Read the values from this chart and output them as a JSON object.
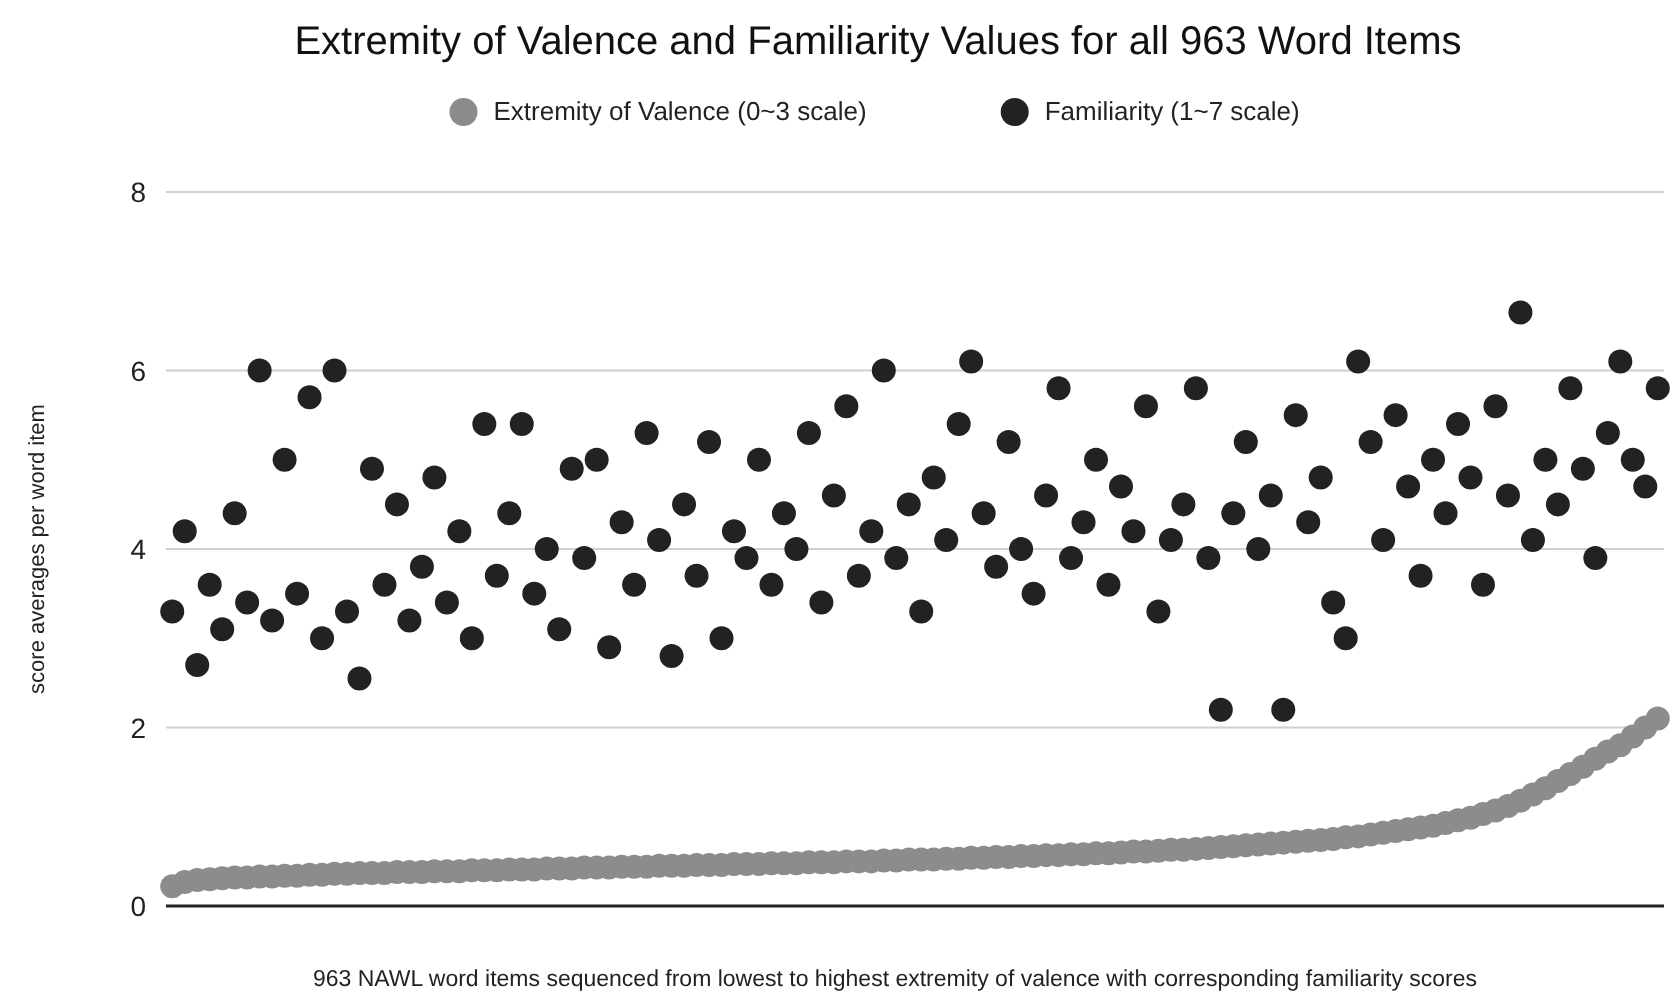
{
  "chart_data": {
    "type": "scatter",
    "title": "Extremity of Valence and Familiarity Values for all 963 Word Items",
    "xlabel": "963 NAWL word items sequenced from lowest to highest extremity of valence with corresponding familiarity scores",
    "ylabel": "score averages per word item",
    "categories": [
      null,
      null,
      null,
      null,
      null,
      null,
      null,
      null,
      null,
      null,
      null,
      null,
      null,
      null,
      null,
      null,
      null,
      null,
      null,
      null,
      null,
      null,
      null,
      null,
      null,
      null,
      null,
      null,
      null,
      null,
      null,
      null,
      null,
      null,
      null,
      null,
      null,
      null,
      null,
      null,
      null,
      null,
      null,
      null,
      null,
      null,
      null,
      null,
      null,
      null,
      null,
      null,
      null,
      null,
      null,
      null,
      null,
      null,
      null,
      null,
      null,
      null,
      null,
      null,
      null,
      null,
      null,
      null,
      null,
      null,
      null,
      null,
      null,
      null,
      null,
      null,
      null,
      null,
      null,
      null,
      null,
      null,
      null,
      null,
      null,
      null,
      null,
      null,
      null,
      null,
      null,
      null,
      null,
      null,
      null,
      null,
      null,
      null,
      null,
      null,
      null,
      null,
      null,
      null,
      null,
      null,
      null,
      null,
      null,
      null,
      null,
      null,
      null,
      null,
      null,
      null,
      null,
      null,
      null,
      null
    ],
    "series": [
      {
        "name": "Extremity of Valence (0~3 scale)",
        "color": "#8c8c8c",
        "values": [
          0.22,
          0.27,
          0.29,
          0.3,
          0.31,
          0.32,
          0.32,
          0.33,
          0.33,
          0.34,
          0.34,
          0.35,
          0.35,
          0.36,
          0.36,
          0.37,
          0.37,
          0.37,
          0.38,
          0.38,
          0.38,
          0.39,
          0.39,
          0.39,
          0.4,
          0.4,
          0.4,
          0.41,
          0.41,
          0.41,
          0.42,
          0.42,
          0.42,
          0.43,
          0.43,
          0.43,
          0.44,
          0.44,
          0.44,
          0.45,
          0.45,
          0.45,
          0.46,
          0.46,
          0.46,
          0.47,
          0.47,
          0.47,
          0.48,
          0.48,
          0.48,
          0.49,
          0.49,
          0.49,
          0.5,
          0.5,
          0.5,
          0.51,
          0.51,
          0.52,
          0.52,
          0.52,
          0.53,
          0.53,
          0.54,
          0.54,
          0.55,
          0.55,
          0.56,
          0.56,
          0.57,
          0.57,
          0.58,
          0.58,
          0.59,
          0.59,
          0.6,
          0.61,
          0.61,
          0.62,
          0.63,
          0.63,
          0.64,
          0.65,
          0.66,
          0.67,
          0.68,
          0.69,
          0.7,
          0.71,
          0.72,
          0.73,
          0.74,
          0.75,
          0.77,
          0.78,
          0.8,
          0.82,
          0.84,
          0.86,
          0.88,
          0.9,
          0.93,
          0.96,
          0.99,
          1.03,
          1.07,
          1.12,
          1.18,
          1.25,
          1.32,
          1.4,
          1.48,
          1.56,
          1.65,
          1.73,
          1.8,
          1.9,
          2.0,
          2.1
        ]
      },
      {
        "name": "Familiarity (1~7 scale)",
        "color": "#222222",
        "values": [
          3.3,
          4.2,
          2.7,
          3.6,
          3.1,
          4.4,
          3.4,
          6.0,
          3.2,
          5.0,
          3.5,
          5.7,
          3.0,
          6.0,
          3.3,
          2.55,
          4.9,
          3.6,
          4.5,
          3.2,
          3.8,
          4.8,
          3.4,
          4.2,
          3.0,
          5.4,
          3.7,
          4.4,
          5.4,
          3.5,
          4.0,
          3.1,
          4.9,
          3.9,
          5.0,
          2.9,
          4.3,
          3.6,
          5.3,
          4.1,
          2.8,
          4.5,
          3.7,
          5.2,
          3.0,
          4.2,
          3.9,
          5.0,
          3.6,
          4.4,
          4.0,
          5.3,
          3.4,
          4.6,
          5.6,
          3.7,
          4.2,
          6.0,
          3.9,
          4.5,
          3.3,
          4.8,
          4.1,
          5.4,
          6.1,
          4.4,
          3.8,
          5.2,
          4.0,
          3.5,
          4.6,
          5.8,
          3.9,
          4.3,
          5.0,
          3.6,
          4.7,
          4.2,
          5.6,
          3.3,
          4.1,
          4.5,
          5.8,
          3.9,
          2.2,
          4.4,
          5.2,
          4.0,
          4.6,
          2.2,
          5.5,
          4.3,
          4.8,
          3.4,
          3.0,
          6.1,
          5.2,
          4.1,
          5.5,
          4.7,
          3.7,
          5.0,
          4.4,
          5.4,
          4.8,
          3.6,
          5.6,
          4.6,
          6.65,
          4.1,
          5.0,
          4.5,
          5.8,
          4.9,
          3.9,
          5.3,
          6.1,
          5.0,
          4.7,
          5.8
        ]
      }
    ],
    "ylim": [
      0,
      8
    ],
    "yticks": [
      0,
      2,
      4,
      6,
      8
    ],
    "grid": "y",
    "legend": "top",
    "marker": "circle"
  }
}
